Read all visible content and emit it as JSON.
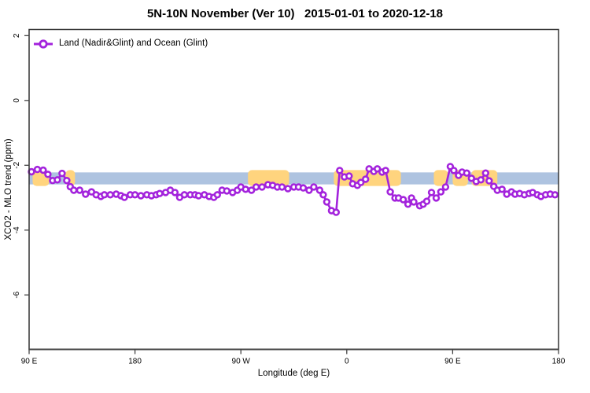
{
  "chart_data": {
    "type": "line",
    "title": "5N-10N November (Ver 10)   2015-01-01 to 2020-12-18",
    "xlabel": "Longitude (deg E)",
    "ylabel": "XCO2 - MLO trend (ppm)",
    "xlim": [
      90,
      540
    ],
    "ylim": [
      -7.68,
      2.19
    ],
    "grid": false,
    "x_ticks": [
      {
        "lon": 90,
        "label": "90 E"
      },
      {
        "lon": 180,
        "label": "180"
      },
      {
        "lon": 270,
        "label": "90 W"
      },
      {
        "lon": 360,
        "label": "0"
      },
      {
        "lon": 450,
        "label": "90 E"
      },
      {
        "lon": 540,
        "label": "180"
      }
    ],
    "y_ticks": [
      {
        "value": 2,
        "label": "2"
      },
      {
        "value": 0,
        "label": "0"
      },
      {
        "value": -2,
        "label": "-2"
      },
      {
        "value": -4,
        "label": "-4"
      },
      {
        "value": -6,
        "label": "-6"
      }
    ],
    "legend": {
      "label": "Land (Nadir&Glint) and Ocean (Glint)",
      "position": "top-left"
    },
    "reference_band": {
      "color": "#AEC3E0",
      "ymin": -2.59,
      "ymax": -2.22
    },
    "highlight_patches": {
      "color": "#FFD47E",
      "lon_ranges": [
        [
          93,
          107
        ],
        [
          121,
          129
        ],
        [
          276,
          311
        ],
        [
          349,
          406
        ],
        [
          434,
          446
        ],
        [
          450,
          463
        ],
        [
          466,
          488
        ]
      ]
    },
    "series": [
      {
        "name": "Land (Nadir&Glint) and Ocean (Glint)",
        "color": "#A323DC",
        "marker": "open-circle",
        "points": [
          [
            92,
            -2.2
          ],
          [
            97,
            -2.13
          ],
          [
            102,
            -2.15
          ],
          [
            106,
            -2.28
          ],
          [
            110,
            -2.47
          ],
          [
            114,
            -2.45
          ],
          [
            118,
            -2.25
          ],
          [
            122,
            -2.47
          ],
          [
            125,
            -2.66
          ],
          [
            128,
            -2.77
          ],
          [
            133,
            -2.77
          ],
          [
            138,
            -2.89
          ],
          [
            143,
            -2.82
          ],
          [
            147,
            -2.91
          ],
          [
            151,
            -2.96
          ],
          [
            154,
            -2.91
          ],
          [
            159,
            -2.91
          ],
          [
            164,
            -2.89
          ],
          [
            168,
            -2.94
          ],
          [
            171,
            -2.99
          ],
          [
            176,
            -2.91
          ],
          [
            180,
            -2.91
          ],
          [
            185,
            -2.94
          ],
          [
            190,
            -2.91
          ],
          [
            194,
            -2.94
          ],
          [
            198,
            -2.91
          ],
          [
            201,
            -2.87
          ],
          [
            206,
            -2.84
          ],
          [
            210,
            -2.77
          ],
          [
            214,
            -2.84
          ],
          [
            218,
            -2.99
          ],
          [
            222,
            -2.91
          ],
          [
            227,
            -2.91
          ],
          [
            231,
            -2.91
          ],
          [
            234,
            -2.94
          ],
          [
            239,
            -2.91
          ],
          [
            243,
            -2.96
          ],
          [
            247,
            -2.99
          ],
          [
            250,
            -2.91
          ],
          [
            254,
            -2.77
          ],
          [
            258,
            -2.79
          ],
          [
            263,
            -2.84
          ],
          [
            267,
            -2.77
          ],
          [
            270,
            -2.67
          ],
          [
            274,
            -2.74
          ],
          [
            279,
            -2.77
          ],
          [
            283,
            -2.67
          ],
          [
            288,
            -2.67
          ],
          [
            293,
            -2.6
          ],
          [
            297,
            -2.62
          ],
          [
            301,
            -2.67
          ],
          [
            305,
            -2.67
          ],
          [
            310,
            -2.72
          ],
          [
            315,
            -2.67
          ],
          [
            319,
            -2.67
          ],
          [
            323,
            -2.7
          ],
          [
            328,
            -2.77
          ],
          [
            332,
            -2.67
          ],
          [
            337,
            -2.77
          ],
          [
            340,
            -2.91
          ],
          [
            343,
            -3.13
          ],
          [
            347,
            -3.4
          ],
          [
            351,
            -3.45
          ],
          [
            354,
            -2.16
          ],
          [
            358,
            -2.36
          ],
          [
            362,
            -2.33
          ],
          [
            365,
            -2.57
          ],
          [
            369,
            -2.62
          ],
          [
            372,
            -2.53
          ],
          [
            376,
            -2.43
          ],
          [
            379,
            -2.11
          ],
          [
            383,
            -2.19
          ],
          [
            386,
            -2.11
          ],
          [
            390,
            -2.21
          ],
          [
            393,
            -2.16
          ],
          [
            397,
            -2.82
          ],
          [
            401,
            -3.01
          ],
          [
            404,
            -3.01
          ],
          [
            408,
            -3.06
          ],
          [
            412,
            -3.2
          ],
          [
            415,
            -3.01
          ],
          [
            417,
            -3.13
          ],
          [
            422,
            -3.25
          ],
          [
            425,
            -3.2
          ],
          [
            428,
            -3.11
          ],
          [
            432,
            -2.84
          ],
          [
            436,
            -3.01
          ],
          [
            440,
            -2.82
          ],
          [
            444,
            -2.67
          ],
          [
            448,
            -2.04
          ],
          [
            451,
            -2.16
          ],
          [
            455,
            -2.31
          ],
          [
            458,
            -2.21
          ],
          [
            462,
            -2.24
          ],
          [
            466,
            -2.4
          ],
          [
            470,
            -2.5
          ],
          [
            474,
            -2.45
          ],
          [
            478,
            -2.24
          ],
          [
            481,
            -2.48
          ],
          [
            485,
            -2.65
          ],
          [
            488,
            -2.77
          ],
          [
            492,
            -2.74
          ],
          [
            496,
            -2.89
          ],
          [
            500,
            -2.82
          ],
          [
            503,
            -2.89
          ],
          [
            507,
            -2.87
          ],
          [
            511,
            -2.91
          ],
          [
            515,
            -2.87
          ],
          [
            518,
            -2.84
          ],
          [
            522,
            -2.91
          ],
          [
            525,
            -2.96
          ],
          [
            529,
            -2.91
          ],
          [
            533,
            -2.89
          ],
          [
            537,
            -2.91
          ]
        ]
      }
    ]
  }
}
